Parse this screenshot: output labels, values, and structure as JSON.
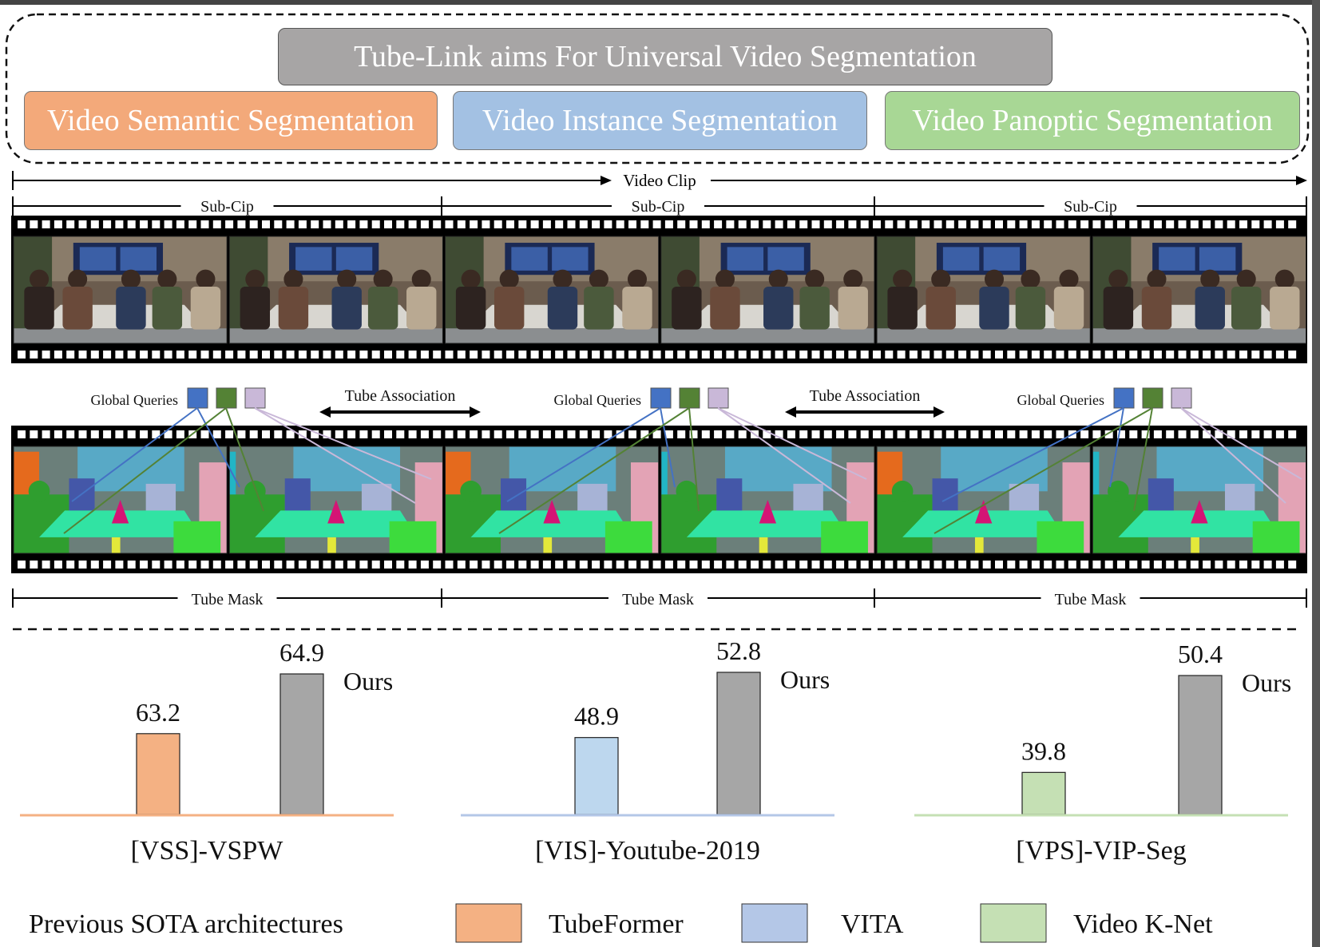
{
  "header": {
    "title": "Tube-Link aims For Universal Video Segmentation",
    "tasks": [
      {
        "label": "Video Semantic Segmentation",
        "color": "#f3a97a"
      },
      {
        "label": "Video Instance Segmentation",
        "color": "#a3c1e3"
      },
      {
        "label": "Video Panoptic Segmentation",
        "color": "#a8d795"
      }
    ]
  },
  "pipeline": {
    "video_clip_label": "Video Clip",
    "sub_clip_label": "Sub-Cip",
    "global_queries_label": "Global Queries",
    "tube_association_label": "Tube Association",
    "tube_mask_label": "Tube Mask",
    "query_colors": [
      "#4472c4",
      "#548235",
      "#c9b8d8"
    ]
  },
  "chart_data": [
    {
      "type": "bar",
      "title": "[VSS]-VSPW",
      "categories": [
        "TubeFormer",
        "Ours"
      ],
      "values": [
        63.2,
        64.9
      ],
      "colors": [
        "#f4b183",
        "#a6a6a6"
      ],
      "baseline_color": "#f4b183",
      "ours_label": "Ours"
    },
    {
      "type": "bar",
      "title": "[VIS]-Youtube-2019",
      "categories": [
        "VITA",
        "Ours"
      ],
      "values": [
        48.9,
        52.8
      ],
      "colors": [
        "#bdd7ee",
        "#a6a6a6"
      ],
      "baseline_color": "#b4c7e7",
      "ours_label": "Ours"
    },
    {
      "type": "bar",
      "title": "[VPS]-VIP-Seg",
      "categories": [
        "Video K-Net",
        "Ours"
      ],
      "values": [
        39.8,
        50.4
      ],
      "colors": [
        "#c5e0b4",
        "#a6a6a6"
      ],
      "baseline_color": "#c5e0b4",
      "ours_label": "Ours"
    }
  ],
  "legend": {
    "title": "Previous SOTA architectures",
    "items": [
      {
        "label": "TubeFormer",
        "color": "#f4b183"
      },
      {
        "label": "VITA",
        "color": "#b4c7e7"
      },
      {
        "label": "Video K-Net",
        "color": "#c5e0b4"
      }
    ]
  }
}
